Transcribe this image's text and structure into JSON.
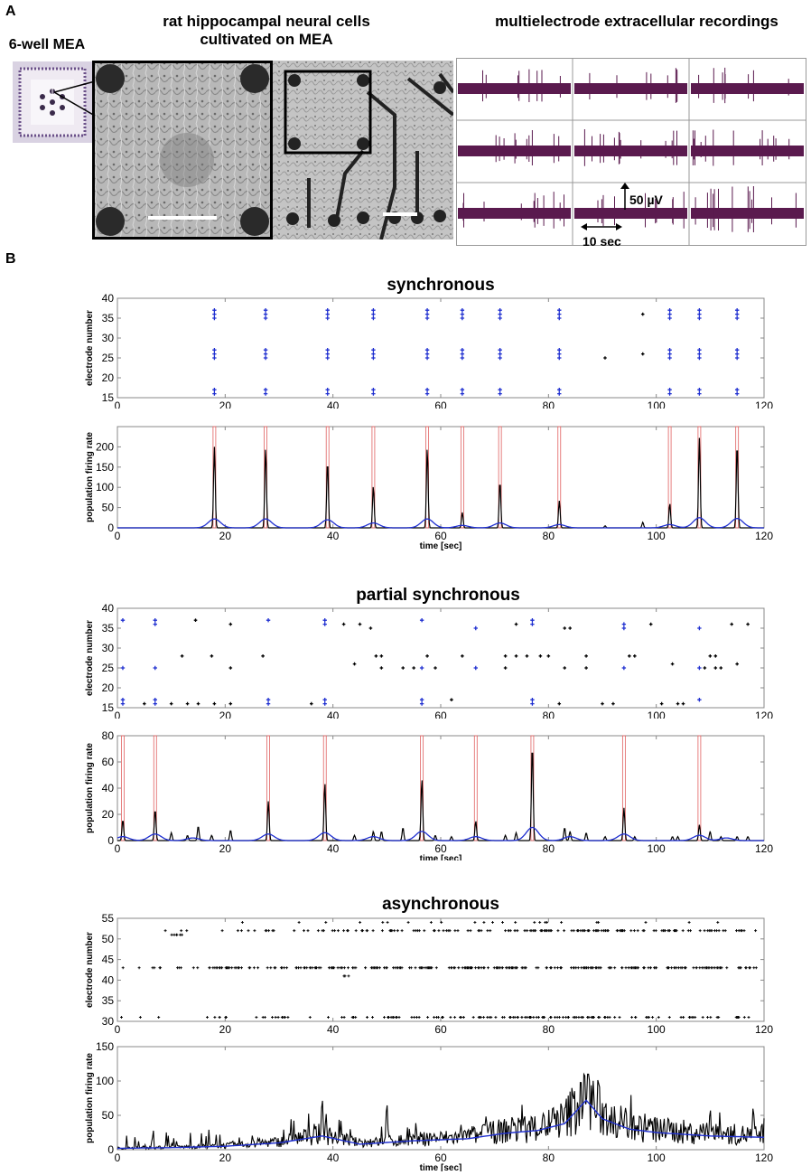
{
  "panel_a": {
    "letter": "A",
    "mea_label": "6-well MEA",
    "cells_label": "rat hippocampal neural cells cultivated on MEA",
    "recordings_label": "multielectrode extracellular recordings",
    "scale_voltage": "50 µV",
    "scale_time": "10 sec",
    "colors": {
      "trace": "#5a1a4e",
      "grid": "#999999"
    }
  },
  "panel_b": {
    "letter": "B"
  },
  "chart_data": [
    {
      "type": "scatter",
      "title": "synchronous",
      "ylabel": "electrode number",
      "xlim": [
        0,
        120
      ],
      "ylim": [
        15,
        40
      ],
      "xticks": [
        0,
        20,
        40,
        60,
        80,
        100,
        120
      ],
      "yticks": [
        15,
        20,
        25,
        30,
        35,
        40
      ],
      "burst_x": [
        18,
        27.5,
        39,
        47.5,
        57.5,
        64,
        71,
        82,
        102.5,
        108,
        115
      ],
      "burst_electrodes": [
        16,
        17,
        25,
        26,
        27,
        35,
        36,
        37
      ],
      "isolated_points": [
        {
          "x": 90.5,
          "y": 25
        },
        {
          "x": 97.5,
          "y": 26
        },
        {
          "x": 97.5,
          "y": 36
        }
      ],
      "colors": {
        "burst": "#1f2fd0",
        "isolated": "#000000"
      }
    },
    {
      "type": "line",
      "xlabel": "time [sec]",
      "ylabel": "population firing rate",
      "xlim": [
        0,
        120
      ],
      "ylim": [
        0,
        250
      ],
      "xticks": [
        0,
        20,
        40,
        60,
        80,
        100,
        120
      ],
      "yticks": [
        0,
        50,
        100,
        150,
        200
      ],
      "peaks": [
        [
          18,
          200
        ],
        [
          27.5,
          197
        ],
        [
          39,
          165
        ],
        [
          47.5,
          103
        ],
        [
          57.5,
          197
        ],
        [
          64,
          38
        ],
        [
          71,
          115
        ],
        [
          82,
          67
        ],
        [
          90.5,
          5
        ],
        [
          97.5,
          14
        ],
        [
          102.5,
          60
        ],
        [
          108,
          222
        ],
        [
          115,
          208
        ]
      ],
      "smooth_peaks": [
        [
          18,
          22
        ],
        [
          27.5,
          22
        ],
        [
          39,
          20
        ],
        [
          47.5,
          12
        ],
        [
          57.5,
          22
        ],
        [
          64,
          6
        ],
        [
          71,
          12
        ],
        [
          82,
          8
        ],
        [
          102.5,
          8
        ],
        [
          108,
          25
        ],
        [
          115,
          23
        ]
      ],
      "detected_bursts_x": [
        18,
        27.5,
        39,
        47.5,
        57.5,
        64,
        71,
        82,
        102.5,
        108,
        115
      ],
      "colors": {
        "raw": "#000000",
        "smooth": "#1f2fd0",
        "burst_marker": "#e06060"
      }
    },
    {
      "type": "scatter",
      "title": "partial synchronous",
      "ylabel": "electrode number",
      "xlim": [
        0,
        120
      ],
      "ylim": [
        15,
        40
      ],
      "xticks": [
        0,
        20,
        40,
        60,
        80,
        100,
        120
      ],
      "yticks": [
        15,
        20,
        25,
        30,
        35,
        40
      ],
      "burst_points": [
        [
          1,
          16
        ],
        [
          1,
          17
        ],
        [
          1,
          25
        ],
        [
          1,
          37
        ],
        [
          7,
          16
        ],
        [
          7,
          17
        ],
        [
          7,
          25
        ],
        [
          7,
          36
        ],
        [
          7,
          37
        ],
        [
          28,
          16
        ],
        [
          28,
          17
        ],
        [
          28,
          37
        ],
        [
          38.5,
          16
        ],
        [
          38.5,
          17
        ],
        [
          38.5,
          36
        ],
        [
          38.5,
          37
        ],
        [
          56.5,
          16
        ],
        [
          56.5,
          17
        ],
        [
          56.5,
          25
        ],
        [
          56.5,
          37
        ],
        [
          66.5,
          25
        ],
        [
          66.5,
          35
        ],
        [
          77,
          16
        ],
        [
          77,
          17
        ],
        [
          77,
          36
        ],
        [
          77,
          37
        ],
        [
          94,
          25
        ],
        [
          94,
          35
        ],
        [
          94,
          36
        ],
        [
          108,
          17
        ],
        [
          108,
          25
        ],
        [
          108,
          35
        ]
      ],
      "other_points": [
        [
          5,
          16
        ],
        [
          10,
          16
        ],
        [
          13,
          16
        ],
        [
          15,
          16
        ],
        [
          14.5,
          37
        ],
        [
          12,
          28
        ],
        [
          17.5,
          28
        ],
        [
          18,
          16
        ],
        [
          21,
          16
        ],
        [
          21,
          25
        ],
        [
          21,
          36
        ],
        [
          27,
          28
        ],
        [
          36,
          16
        ],
        [
          42,
          36
        ],
        [
          44,
          26
        ],
        [
          45,
          36
        ],
        [
          47,
          35
        ],
        [
          48,
          28
        ],
        [
          49,
          28
        ],
        [
          49,
          25
        ],
        [
          53,
          25
        ],
        [
          55,
          25
        ],
        [
          57.5,
          28
        ],
        [
          59,
          25
        ],
        [
          62,
          17
        ],
        [
          64,
          28
        ],
        [
          72,
          25
        ],
        [
          72,
          28
        ],
        [
          74,
          28
        ],
        [
          74,
          36
        ],
        [
          76,
          28
        ],
        [
          78.5,
          28
        ],
        [
          80,
          28
        ],
        [
          82,
          16
        ],
        [
          83,
          25
        ],
        [
          83,
          35
        ],
        [
          84,
          35
        ],
        [
          87,
          25
        ],
        [
          87,
          28
        ],
        [
          90,
          16
        ],
        [
          92,
          16
        ],
        [
          95,
          28
        ],
        [
          96,
          28
        ],
        [
          99,
          36
        ],
        [
          101,
          16
        ],
        [
          103,
          26
        ],
        [
          104,
          16
        ],
        [
          105,
          16
        ],
        [
          109,
          25
        ],
        [
          110,
          28
        ],
        [
          111,
          28
        ],
        [
          111,
          25
        ],
        [
          112,
          25
        ],
        [
          114,
          36
        ],
        [
          115,
          26
        ],
        [
          117,
          36
        ]
      ],
      "colors": {
        "burst": "#1f2fd0",
        "other": "#000000"
      }
    },
    {
      "type": "line",
      "xlabel": "time [sec]",
      "ylabel": "population firing rate",
      "xlim": [
        0,
        120
      ],
      "ylim": [
        0,
        80
      ],
      "xticks": [
        0,
        20,
        40,
        60,
        80,
        100,
        120
      ],
      "yticks": [
        0,
        20,
        40,
        60,
        80
      ],
      "peaks": [
        [
          1,
          16
        ],
        [
          7,
          24
        ],
        [
          10,
          6
        ],
        [
          13,
          4
        ],
        [
          15,
          11
        ],
        [
          17.5,
          4
        ],
        [
          21,
          8
        ],
        [
          28,
          30
        ],
        [
          38.5,
          44
        ],
        [
          44,
          4
        ],
        [
          47.5,
          7
        ],
        [
          49,
          7
        ],
        [
          53,
          10
        ],
        [
          56.5,
          47
        ],
        [
          59,
          4
        ],
        [
          62,
          3
        ],
        [
          66.5,
          15
        ],
        [
          72,
          4
        ],
        [
          74,
          6
        ],
        [
          77,
          73
        ],
        [
          83,
          10
        ],
        [
          84,
          7
        ],
        [
          87,
          6
        ],
        [
          90.5,
          3
        ],
        [
          94,
          25
        ],
        [
          96,
          3
        ],
        [
          103,
          3
        ],
        [
          104,
          3
        ],
        [
          108,
          12
        ],
        [
          110,
          7
        ],
        [
          112,
          3
        ],
        [
          115,
          3
        ],
        [
          117,
          3
        ]
      ],
      "smooth_peaks": [
        [
          1,
          3
        ],
        [
          7,
          5
        ],
        [
          14,
          2
        ],
        [
          28,
          5
        ],
        [
          38.5,
          6
        ],
        [
          47.5,
          3
        ],
        [
          56.5,
          7
        ],
        [
          66.5,
          3
        ],
        [
          77,
          10
        ],
        [
          84,
          3
        ],
        [
          94,
          5
        ],
        [
          108,
          4
        ],
        [
          113,
          2
        ]
      ],
      "detected_bursts_x": [
        1,
        7,
        28,
        38.5,
        56.5,
        66.5,
        77,
        94,
        108
      ],
      "colors": {
        "raw": "#000000",
        "smooth": "#1f2fd0",
        "burst_marker": "#e06060"
      }
    },
    {
      "type": "scatter",
      "title": "asynchronous",
      "ylabel": "electrode number",
      "xlim": [
        0,
        120
      ],
      "ylim": [
        30,
        55
      ],
      "xticks": [
        0,
        20,
        40,
        60,
        80,
        100,
        120
      ],
      "yticks": [
        30,
        35,
        40,
        45,
        50,
        55
      ],
      "electrode_rows": [
        {
          "electrode": 31,
          "x_start": 0,
          "x_end": 119,
          "density": [
            0.1,
            0.15,
            0.25,
            0.3,
            0.35,
            0.5,
            0.6,
            0.9,
            0.8,
            0.5,
            0.4,
            0.4
          ]
        },
        {
          "electrode": 41,
          "x_start": 42,
          "x_end": 43,
          "density": [
            1
          ]
        },
        {
          "electrode": 43,
          "x_start": 0,
          "x_end": 119,
          "density": [
            0.2,
            0.5,
            0.7,
            0.8,
            0.9,
            0.95,
            0.9,
            1,
            1,
            0.9,
            0.8,
            0.8
          ]
        },
        {
          "electrode": 51,
          "x_start": 10,
          "x_end": 12,
          "density": [
            1
          ]
        },
        {
          "electrode": 52,
          "x_start": 2,
          "x_end": 119,
          "density": [
            0.05,
            0.1,
            0.3,
            0.35,
            0.4,
            0.5,
            0.5,
            0.9,
            0.9,
            0.7,
            0.6,
            0.6
          ]
        },
        {
          "electrode": 54,
          "x_start": 22,
          "x_end": 115,
          "density": [
            0.05,
            0.05,
            0.1,
            0.1,
            0.15,
            0.1,
            0.15,
            0.2,
            0.1,
            0.05,
            0.05,
            0.05
          ]
        }
      ],
      "colors": {
        "points": "#000000"
      }
    },
    {
      "type": "line",
      "xlabel": "time [sec]",
      "ylabel": "population firing rate",
      "xlim": [
        0,
        120
      ],
      "ylim": [
        0,
        150
      ],
      "xticks": [
        0,
        20,
        40,
        60,
        80,
        100,
        120
      ],
      "yticks": [
        0,
        50,
        100,
        150
      ],
      "smooth_curve": [
        [
          0,
          2
        ],
        [
          10,
          3
        ],
        [
          20,
          5
        ],
        [
          30,
          10
        ],
        [
          38,
          20
        ],
        [
          45,
          8
        ],
        [
          55,
          13
        ],
        [
          65,
          16
        ],
        [
          72,
          24
        ],
        [
          78,
          28
        ],
        [
          83,
          38
        ],
        [
          87,
          72
        ],
        [
          90,
          45
        ],
        [
          95,
          30
        ],
        [
          100,
          25
        ],
        [
          110,
          20
        ],
        [
          120,
          18
        ]
      ],
      "notable_peaks": [
        [
          38,
          75
        ],
        [
          50,
          68
        ],
        [
          86,
          103
        ],
        [
          110,
          60
        ],
        [
          118,
          63
        ]
      ],
      "colors": {
        "raw": "#000000",
        "smooth": "#1f2fd0"
      }
    }
  ]
}
